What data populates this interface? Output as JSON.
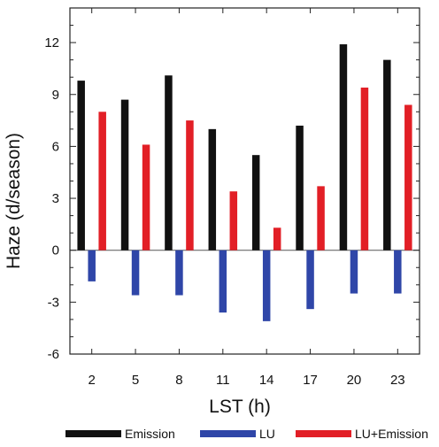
{
  "chart_data": {
    "type": "bar",
    "title": "",
    "xlabel": "LST (h)",
    "ylabel": "Haze (d/season)",
    "categories": [
      "2",
      "5",
      "8",
      "11",
      "14",
      "17",
      "20",
      "23"
    ],
    "ylim": [
      -6,
      14
    ],
    "yticks": [
      "12",
      "9",
      "6",
      "3",
      "0",
      "-3",
      "-6"
    ],
    "series": [
      {
        "name": "Emission",
        "values": [
          9.8,
          8.7,
          10.1,
          7.0,
          5.5,
          7.2,
          11.9,
          11.0
        ],
        "color": "#111111"
      },
      {
        "name": "LU",
        "values": [
          -1.8,
          -2.6,
          -2.6,
          -3.6,
          -4.1,
          -3.4,
          -2.5,
          -2.5
        ],
        "color": "#2f46a8"
      },
      {
        "name": "LU+Emission",
        "values": [
          8.0,
          6.1,
          7.5,
          3.4,
          1.3,
          3.7,
          9.4,
          8.4
        ],
        "color": "#e21f26"
      }
    ],
    "legend_position": "bottom",
    "grid": false,
    "zero_line": true
  }
}
